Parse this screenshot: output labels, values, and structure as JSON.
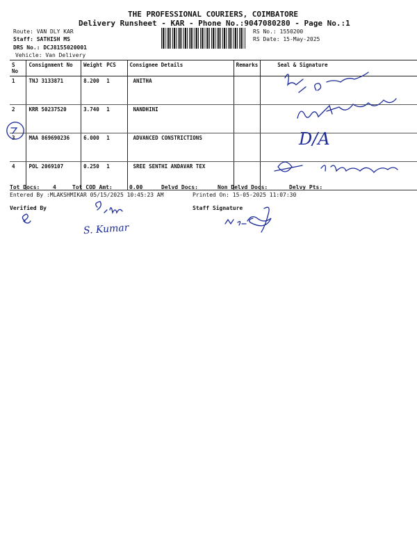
{
  "header": {
    "company": "THE PROFESSIONAL COURIERS, COIMBATORE",
    "subtitle": "Delivery Runsheet - KAR - Phone No.:9047080280 - Page No.:1"
  },
  "info": {
    "route": "Route: VAN DLY KAR",
    "staff": "Staff: SATHISH MS",
    "drs": "DRS No.: DCJ8155020001",
    "vehicle": "Vehicle: Van Delivery",
    "rs_no": "RS No.: 1550200",
    "rs_date": "RS Date: 15-May-2025"
  },
  "table": {
    "columns": [
      "S No",
      "Consignment No",
      "Weight",
      "PCS",
      "Consignee Details",
      "Remarks",
      "Seal & Signature"
    ],
    "rows": [
      {
        "sno": "1",
        "consignment": "TNJ 3133871",
        "weight": "8.200",
        "pcs": "1",
        "consignee": "ANITHA",
        "remarks": ""
      },
      {
        "sno": "2",
        "consignment": "KRR 50237520",
        "weight": "3.740",
        "pcs": "1",
        "consignee": "NANDHINI",
        "remarks": ""
      },
      {
        "sno": "3",
        "consignment": "MAA 869690236",
        "weight": "6.000",
        "pcs": "1",
        "consignee": "ADVANCED CONSTRICTIONS",
        "remarks": ""
      },
      {
        "sno": "4",
        "consignment": "POL 2069107",
        "weight": "0.250",
        "pcs": "1",
        "consignee": "SREE SENTHI ANDAVAR TEX",
        "remarks": ""
      }
    ]
  },
  "footer": {
    "tot_docs_label": "Tot Docs:",
    "tot_docs": "4",
    "tot_cod_label": "Tot COD Amt:",
    "tot_cod": "0.00",
    "delvd_docs": "Delvd Docs:",
    "non_delvd_docs": "Non Delvd Docs:",
    "delvy_pts": "Delvy Pts:",
    "entered_by": "Entered By :MLAKSHMIKAR 05/15/2025 10:45:23 AM",
    "printed_on": "Printed On: 15-05-2025 11:07:30",
    "verified_by": "Verified By",
    "staff_signature": "Staff Signature"
  },
  "handwriting": {
    "row1": "8098274729",
    "row2": "9843128808",
    "row3": "D/A",
    "row4": "9567345747",
    "verifier": "S. Kumar",
    "staff": "MS"
  },
  "colors": {
    "ink": "#1a2a9a",
    "text": "#111111"
  }
}
